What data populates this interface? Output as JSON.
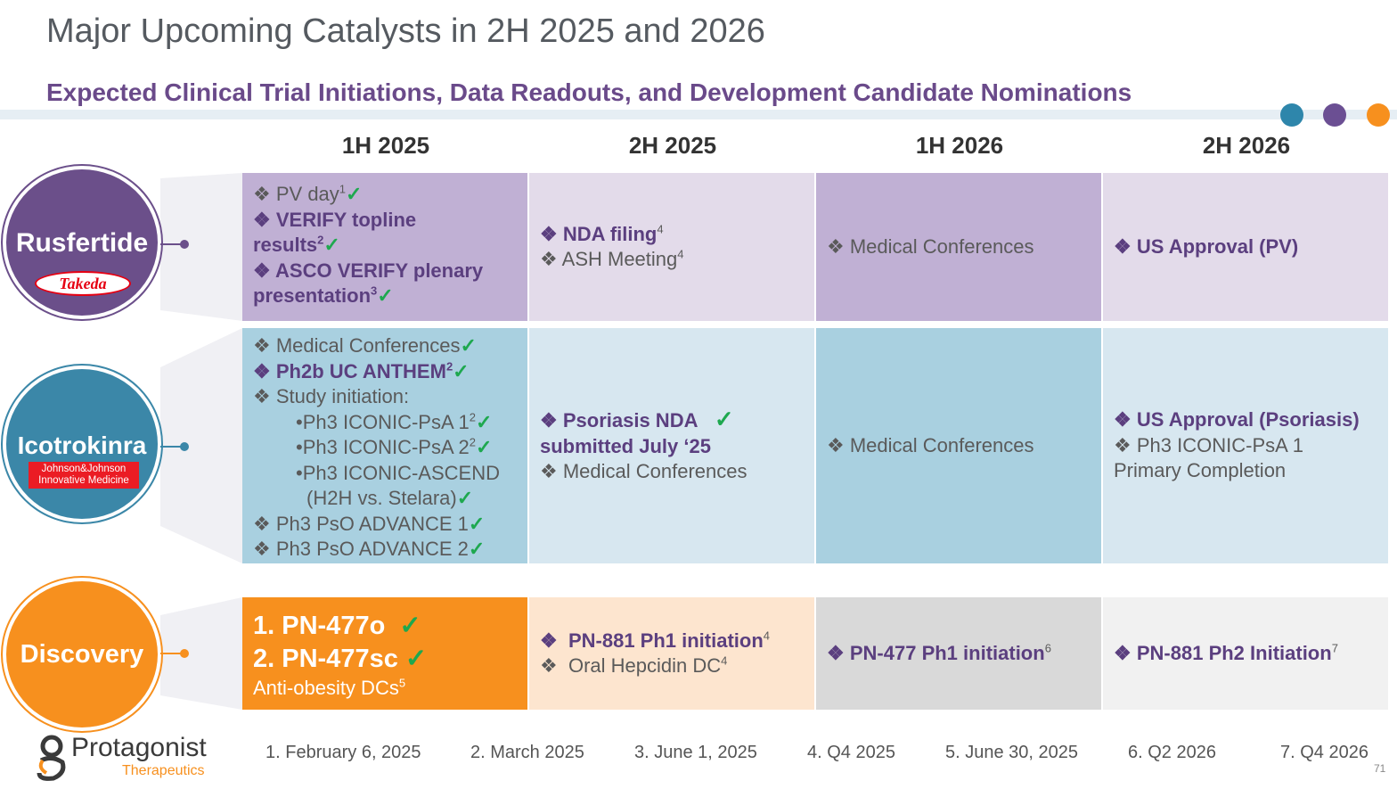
{
  "title": "Major Upcoming Catalysts in 2H 2025 and 2026",
  "subtitle": "Expected Clinical Trial Initiations, Data Readouts, and Development Candidate Nominations",
  "colors": {
    "purple_dark": "#c0b0d4",
    "purple_light": "#e3dbea",
    "blue_dark": "#a9d0e0",
    "blue_light": "#d7e7f0",
    "orange": "#f7901e",
    "peach": "#fde5cf",
    "grey_dark": "#d9d9d9",
    "grey_light": "#f1f1f1",
    "dot1": "#2e86ab",
    "dot2": "#6b4f93",
    "dot3": "#f7901e"
  },
  "columns": [
    "1H 2025",
    "2H 2025",
    "1H 2026",
    "2H 2026"
  ],
  "bullet": "❖",
  "check": "✓",
  "rows": {
    "rusfertide": {
      "label": "Rusfertide",
      "partner": "Takeda",
      "c1": {
        "l1": "PV day",
        "l1_sup": "1",
        "l2a": "VERIFY topline",
        "l2b": "results",
        "l2_sup": "2",
        "l3a": "ASCO VERIFY plenary",
        "l3b": "presentation",
        "l3_sup": "3"
      },
      "c2": {
        "l1": "NDA filing",
        "l1_sup": "4",
        "l2": "ASH Meeting",
        "l2_sup": "4"
      },
      "c3": {
        "l1": "Medical Conferences"
      },
      "c4": {
        "l1": "US Approval (PV)"
      }
    },
    "icotrokinra": {
      "label": "Icotrokinra",
      "partner_line1": "Johnson&Johnson",
      "partner_line2": "Innovative Medicine",
      "c1": {
        "l1": "Medical Conferences",
        "l2": "Ph2b UC ANTHEM",
        "l2_sup": "2",
        "l3": "Study initiation:",
        "s1": "Ph3 ICONIC-PsA 1",
        "s1_sup": "2",
        "s2": "Ph3 ICONIC-PsA 2",
        "s2_sup": "2",
        "s3": "Ph3 ICONIC-ASCEND",
        "s3b": "(H2H vs. Stelara)",
        "l4": "Ph3 PsO ADVANCE 1",
        "l5": "Ph3 PsO ADVANCE 2"
      },
      "c2": {
        "l1a": "Psoriasis NDA",
        "l1b": "submitted July ‘25",
        "l2": "Medical Conferences"
      },
      "c3": {
        "l1": "Medical Conferences"
      },
      "c4": {
        "l1": "US Approval (Psoriasis)",
        "l2a": "Ph3 ICONIC-PsA 1",
        "l2b": "Primary Completion"
      }
    },
    "discovery": {
      "label": "Discovery",
      "c1": {
        "l1": "1. PN-477o",
        "l2": "2. PN-477sc",
        "l3": "Anti-obesity DCs",
        "l3_sup": "5"
      },
      "c2": {
        "l1": "PN-881 Ph1 initiation",
        "l1_sup": "4",
        "l2": "Oral Hepcidin DC",
        "l2_sup": "4"
      },
      "c3": {
        "l1": "PN-477 Ph1 initiation",
        "l1_sup": "6"
      },
      "c4": {
        "l1": "PN-881 Ph2 Initiation",
        "l1_sup": "7"
      }
    }
  },
  "logo": {
    "name": "Protagonist",
    "sub": "Therapeutics"
  },
  "footnotes": [
    "1. February 6, 2025",
    "2. March 2025",
    "3. June 1, 2025",
    "4. Q4 2025",
    "5. June 30, 2025",
    "6. Q2 2026",
    "7. Q4 2026"
  ],
  "page_number": "71"
}
